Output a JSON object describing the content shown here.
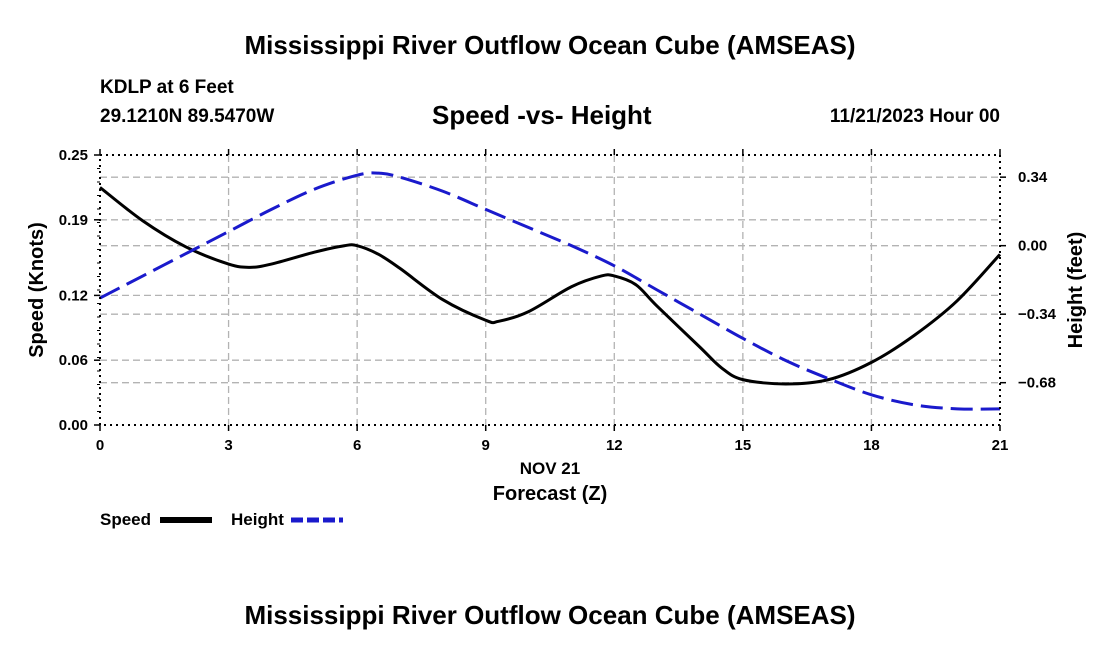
{
  "page": {
    "title": "Mississippi River Outflow Ocean Cube (AMSEAS)",
    "station": "KDLP at 6 Feet",
    "coords": "29.1210N  89.5470W",
    "subtitle": "Speed -vs- Height",
    "date": "11/21/2023 Hour 00",
    "bottom_title": "Mississippi River Outflow Ocean Cube (AMSEAS)"
  },
  "chart_data": {
    "type": "line",
    "title": "Speed -vs- Height",
    "xlabel": "Forecast (Z)",
    "xlabel_date": "NOV 21",
    "ylabel": "Speed (Knots)",
    "y2label": "Height (feet)",
    "xlim": [
      0,
      21
    ],
    "ylim": [
      0,
      0.25
    ],
    "y2lim": [
      -0.89,
      0.45
    ],
    "x_ticks": [
      "0",
      "3",
      "6",
      "9",
      "12",
      "15",
      "18",
      "21"
    ],
    "y_ticks": [
      "0.00",
      "0.06",
      "0.12",
      "0.19",
      "0.25"
    ],
    "y2_ticks": [
      "-0.68",
      "-0.34",
      "0.00",
      "0.34"
    ],
    "grid": true,
    "legend": "bottom-left",
    "series": [
      {
        "name": "Speed",
        "axis": "left",
        "color": "#000000",
        "style": "solid",
        "x": [
          0,
          1,
          2,
          3,
          3.5,
          4,
          5,
          5.7,
          6,
          6.5,
          7,
          8,
          9,
          9.3,
          10,
          11,
          11.7,
          12,
          12.5,
          13,
          14,
          14.5,
          15,
          16,
          17,
          18,
          19,
          20,
          21
        ],
        "values": [
          0.22,
          0.189,
          0.165,
          0.149,
          0.146,
          0.149,
          0.16,
          0.166,
          0.166,
          0.158,
          0.145,
          0.116,
          0.097,
          0.096,
          0.105,
          0.128,
          0.138,
          0.138,
          0.13,
          0.11,
          0.072,
          0.053,
          0.042,
          0.038,
          0.042,
          0.058,
          0.083,
          0.115,
          0.158
        ]
      },
      {
        "name": "Height",
        "axis": "right",
        "color": "#1a1acc",
        "style": "dashed",
        "x": [
          0,
          1,
          2,
          3,
          4,
          5,
          6,
          6.5,
          7,
          8,
          9,
          10,
          11,
          12,
          13,
          14,
          15,
          16,
          17,
          18,
          19,
          20,
          21
        ],
        "values": [
          -0.26,
          -0.15,
          -0.04,
          0.07,
          0.18,
          0.28,
          0.35,
          0.36,
          0.34,
          0.27,
          0.18,
          0.09,
          0.0,
          -0.1,
          -0.22,
          -0.34,
          -0.46,
          -0.57,
          -0.66,
          -0.74,
          -0.79,
          -0.81,
          -0.81
        ]
      }
    ]
  }
}
